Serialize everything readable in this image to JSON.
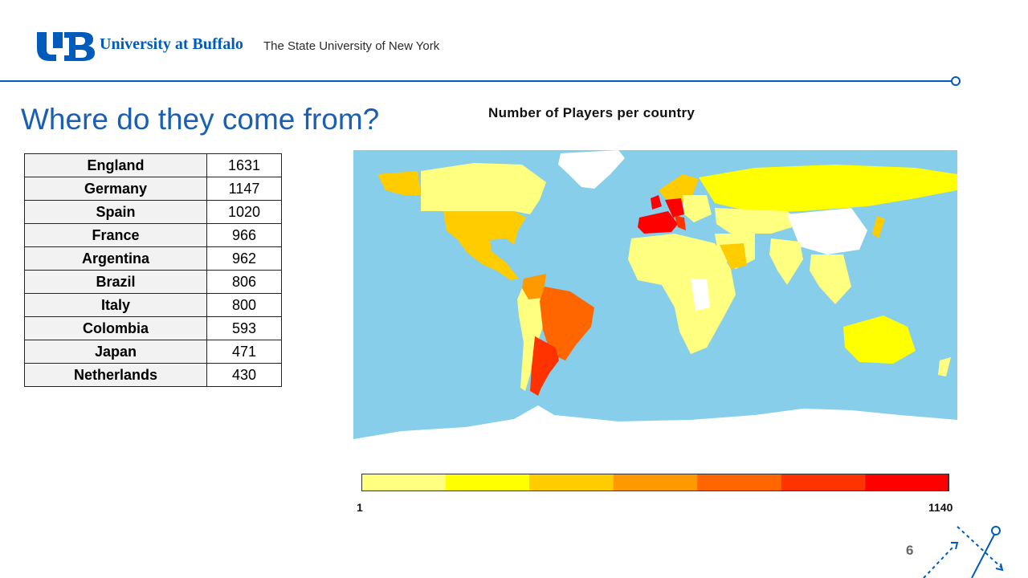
{
  "header": {
    "brand": "University at Buffalo",
    "subtitle": "The State University of New York"
  },
  "slide": {
    "title": "Where do they come from?",
    "page_number": "6"
  },
  "table": {
    "rows": [
      {
        "country": "England",
        "players": "1631"
      },
      {
        "country": "Germany",
        "players": "1147"
      },
      {
        "country": "Spain",
        "players": "1020"
      },
      {
        "country": "France",
        "players": "966"
      },
      {
        "country": "Argentina",
        "players": "962"
      },
      {
        "country": "Brazil",
        "players": "806"
      },
      {
        "country": "Italy",
        "players": "800"
      },
      {
        "country": "Colombia",
        "players": "593"
      },
      {
        "country": "Japan",
        "players": "471"
      },
      {
        "country": "Netherlands",
        "players": "430"
      }
    ]
  },
  "chart_data": {
    "type": "choropleth",
    "title": "Number of Players per country",
    "legend_min": "1",
    "legend_max": "1140",
    "scale_colors": [
      "#ffff80",
      "#ffff00",
      "#ffcc00",
      "#ff9900",
      "#ff6600",
      "#ff3300",
      "#ff0000"
    ],
    "ocean_color": "#87ceeb",
    "no_data_color": "#ffffff"
  },
  "colors": {
    "brand_blue": "#005bbb"
  }
}
